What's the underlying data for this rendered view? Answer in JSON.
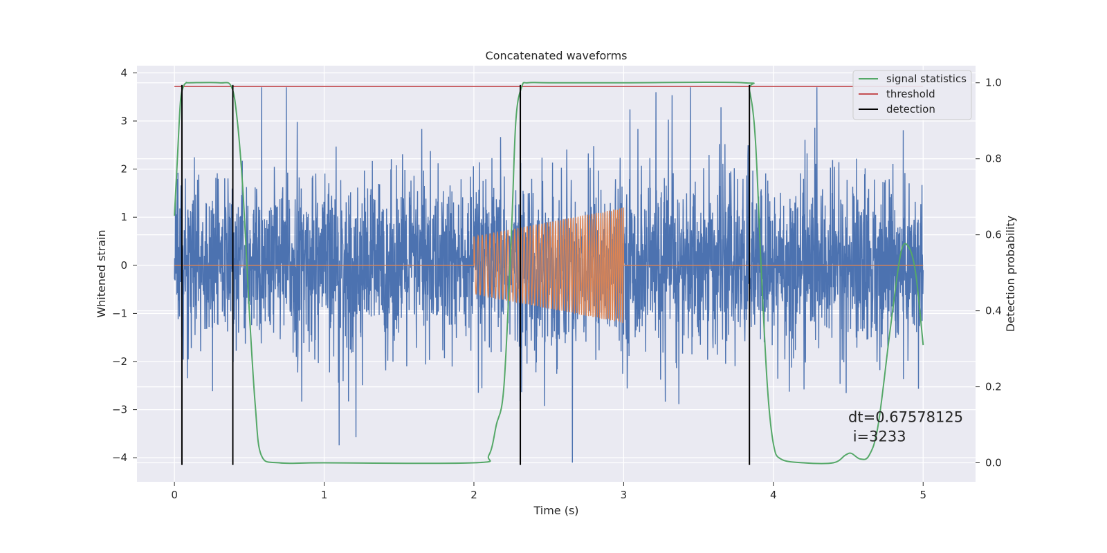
{
  "chart_data": {
    "type": "line",
    "title": "Concatenated waveforms",
    "xlabel": "Time (s)",
    "ylabel_left": "Whitened strain",
    "ylabel_right": "Detection probability",
    "xlim": [
      -0.25,
      5.35
    ],
    "ylim_left": [
      -4.5,
      4.15
    ],
    "ylim_right": [
      -0.05,
      1.045
    ],
    "x_ticks": [
      0,
      1,
      2,
      3,
      4,
      5
    ],
    "y_ticks_left": [
      -4,
      -3,
      -2,
      -1,
      0,
      1,
      2,
      3,
      4
    ],
    "y_ticks_right": [
      0.0,
      0.2,
      0.4,
      0.6,
      0.8,
      1.0
    ],
    "y_tick_labels_left": [
      "−4",
      "−3",
      "−2",
      "−1",
      "0",
      "1",
      "2",
      "3",
      "4"
    ],
    "y_tick_labels_right": [
      "0.0",
      "0.2",
      "0.4",
      "0.6",
      "0.8",
      "1.0"
    ],
    "grid": true,
    "legend_position": "top-right",
    "background_color": "#eaeaf2",
    "series": [
      {
        "key": "strain",
        "axis": "left",
        "color": "#4c72b0",
        "description_values": "noisy whitened strain, roughly within [-4.1, 3.7], time 0 to 5 s",
        "x_range": [
          0,
          5
        ],
        "typical_range": [
          -1.2,
          1.3
        ],
        "max_value": 3.7,
        "min_value": -4.1
      },
      {
        "key": "injected",
        "axis": "left",
        "color": "#dd8452",
        "x": [
          0,
          2,
          2,
          3,
          3,
          5
        ],
        "envelope_start": 0.6,
        "envelope_end": 1.2
      },
      {
        "name": "signal statistics",
        "axis": "right",
        "color": "#55a868",
        "x": [
          0.0,
          0.02,
          0.04,
          0.06,
          0.08,
          0.1,
          0.3,
          0.38,
          0.42,
          0.46,
          0.5,
          0.54,
          0.58,
          0.7,
          1.0,
          2.0,
          2.1,
          2.15,
          2.2,
          2.25,
          2.28,
          2.32,
          2.36,
          2.5,
          3.0,
          3.8,
          3.84,
          3.88,
          3.92,
          3.96,
          4.0,
          4.05,
          4.2,
          4.4,
          4.48,
          4.52,
          4.58,
          4.64,
          4.7,
          4.78,
          4.85,
          4.9,
          4.95,
          5.0
        ],
        "values": [
          0.65,
          0.8,
          0.95,
          0.99,
          1.0,
          1.0,
          1.0,
          0.99,
          0.9,
          0.7,
          0.4,
          0.15,
          0.02,
          0.0,
          0.0,
          0.0,
          0.02,
          0.1,
          0.2,
          0.6,
          0.9,
          0.99,
          1.0,
          1.0,
          1.0,
          1.0,
          0.98,
          0.85,
          0.5,
          0.2,
          0.05,
          0.01,
          0.0,
          0.0,
          0.02,
          0.025,
          0.01,
          0.02,
          0.1,
          0.35,
          0.55,
          0.57,
          0.5,
          0.31
        ]
      },
      {
        "name": "threshold",
        "axis": "right",
        "color": "#c44e52",
        "x": [
          0,
          5
        ],
        "values": [
          0.99,
          0.99
        ]
      },
      {
        "name": "detection",
        "axis": "left",
        "color": "#000000",
        "style": "vertical lines",
        "x": [
          0.05,
          0.39,
          2.31,
          3.84
        ],
        "y_range": [
          -4.15,
          3.75
        ]
      }
    ],
    "annotation": {
      "line1": "dt=0.67578125",
      "line2": " i=3233",
      "x": 4.5,
      "y_right": 0.1
    }
  }
}
